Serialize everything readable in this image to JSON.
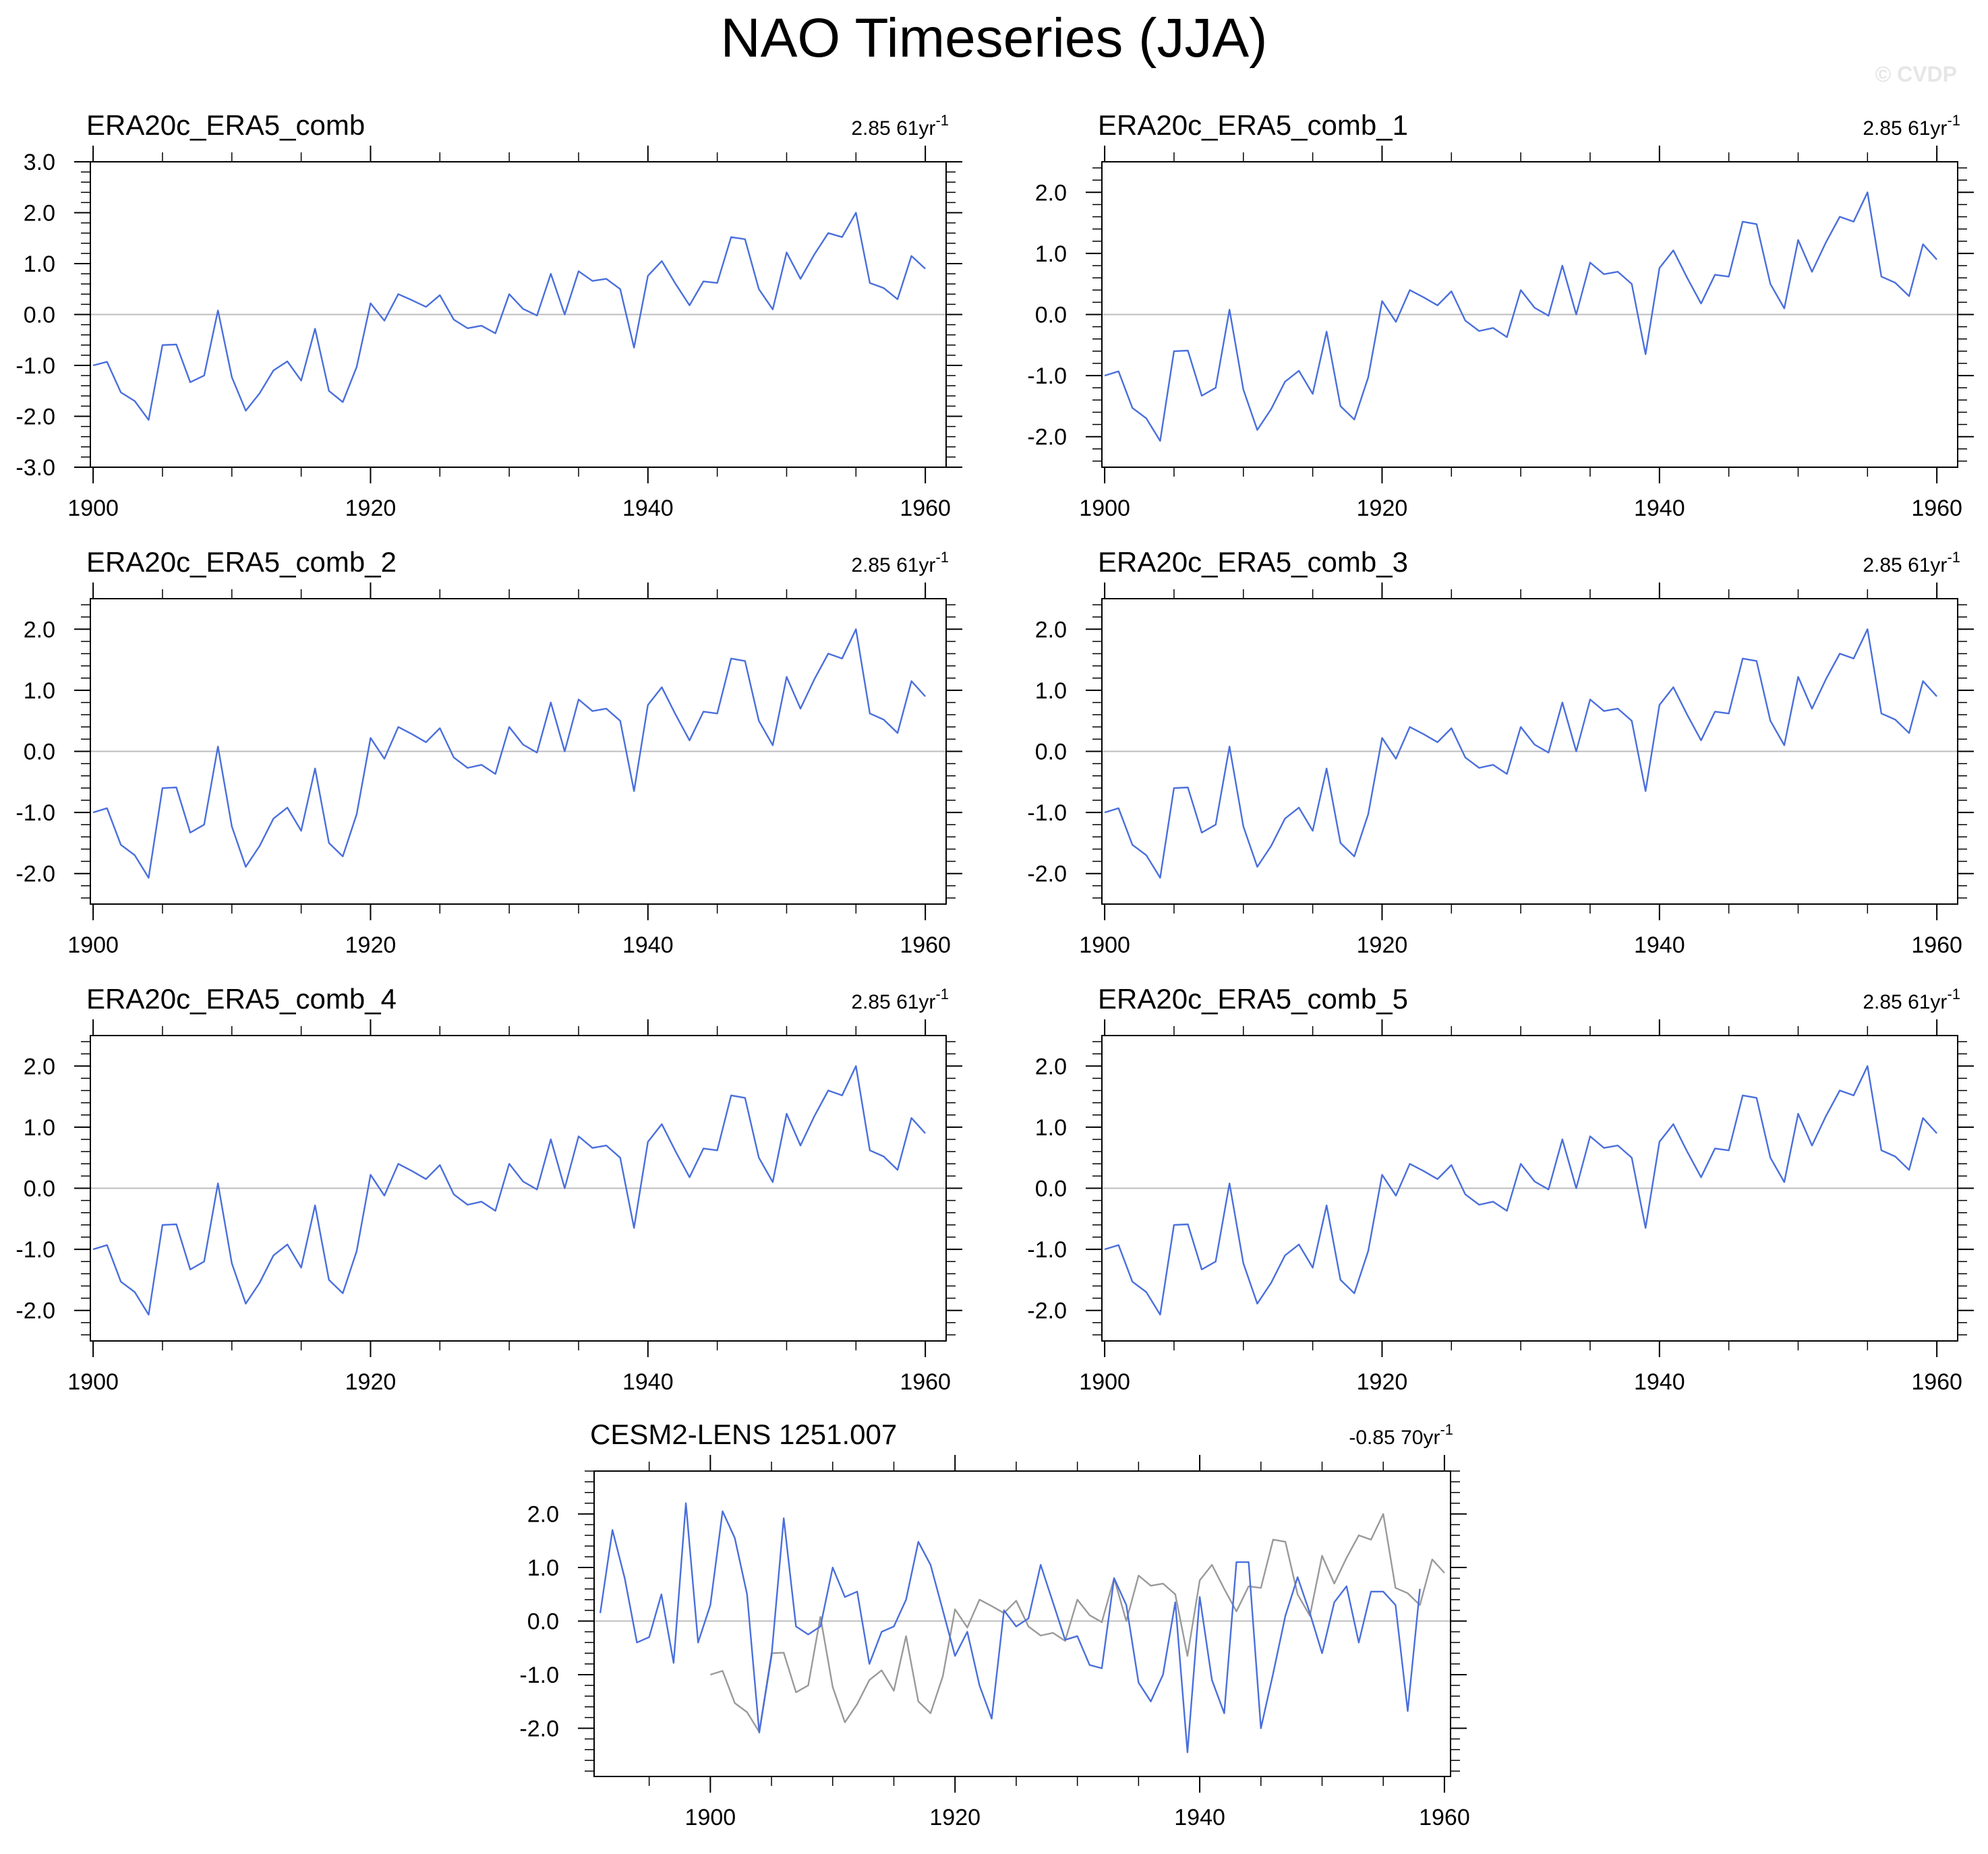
{
  "title": "NAO Timeseries (JJA)",
  "watermark": "© CVDP",
  "colors": {
    "series": "#4a6fdc",
    "observations": "#9a9a9a",
    "zero_line": "#bdbdbd",
    "frame": "#000000"
  },
  "chart_data": [
    {
      "type": "line",
      "title": "ERA20c_ERA5_comb",
      "trend_value": "2.85",
      "trend_length": "61yr",
      "trend_exp": "-1",
      "xlim": [
        1899.8,
        1961.5
      ],
      "ylim": [
        -3,
        3
      ],
      "yticks": [
        -3,
        -2,
        -1,
        0,
        1,
        2,
        3
      ],
      "xticks": [
        1900,
        1920,
        1940,
        1960
      ],
      "ytick_labels": [
        "-3.0",
        "-2.0",
        "-1.0",
        "0.0",
        "1.0",
        "2.0",
        "3.0"
      ],
      "xtick_labels": [
        "1900",
        "1920",
        "1940",
        "1960"
      ],
      "grid": false,
      "x_start": 1900,
      "series": [
        {
          "values": [
            -1.0,
            -0.93,
            -1.53,
            -1.7,
            -2.07,
            -0.6,
            -0.59,
            -1.33,
            -1.2,
            0.08,
            -1.23,
            -1.89,
            -1.55,
            -1.1,
            -0.92,
            -1.3,
            -0.28,
            -1.5,
            -1.72,
            -1.03,
            0.22,
            -0.12,
            0.4,
            0.28,
            0.15,
            0.38,
            -0.1,
            -0.27,
            -0.22,
            -0.37,
            0.4,
            0.11,
            -0.02,
            0.8,
            0.0,
            0.85,
            0.66,
            0.7,
            0.5,
            -0.65,
            0.76,
            1.05,
            0.6,
            0.18,
            0.65,
            0.62,
            1.52,
            1.48,
            0.5,
            0.1,
            1.22,
            0.7,
            1.18,
            1.6,
            1.52,
            2.0,
            0.62,
            0.52,
            0.3,
            1.15,
            0.9
          ]
        }
      ]
    },
    {
      "type": "line",
      "title": "ERA20c_ERA5_comb_1",
      "trend_value": "2.85",
      "trend_length": "61yr",
      "trend_exp": "-1",
      "xlim": [
        1899.8,
        1961.5
      ],
      "ylim": [
        -2.5,
        2.5
      ],
      "yticks": [
        -2,
        -1,
        0,
        1,
        2
      ],
      "xticks": [
        1900,
        1920,
        1940,
        1960
      ],
      "ytick_labels": [
        "-2.0",
        "-1.0",
        "0.0",
        "1.0",
        "2.0"
      ],
      "xtick_labels": [
        "1900",
        "1920",
        "1940",
        "1960"
      ],
      "grid": false,
      "x_start": 1900,
      "series": [
        {
          "values": [
            -1.0,
            -0.93,
            -1.53,
            -1.7,
            -2.07,
            -0.6,
            -0.59,
            -1.33,
            -1.2,
            0.08,
            -1.23,
            -1.89,
            -1.55,
            -1.1,
            -0.92,
            -1.3,
            -0.28,
            -1.5,
            -1.72,
            -1.03,
            0.22,
            -0.12,
            0.4,
            0.28,
            0.15,
            0.38,
            -0.1,
            -0.27,
            -0.22,
            -0.37,
            0.4,
            0.11,
            -0.02,
            0.8,
            0.0,
            0.85,
            0.66,
            0.7,
            0.5,
            -0.65,
            0.76,
            1.05,
            0.6,
            0.18,
            0.65,
            0.62,
            1.52,
            1.48,
            0.5,
            0.1,
            1.22,
            0.7,
            1.18,
            1.6,
            1.52,
            2.0,
            0.62,
            0.52,
            0.3,
            1.15,
            0.9
          ]
        }
      ]
    },
    {
      "type": "line",
      "title": "ERA20c_ERA5_comb_2",
      "trend_value": "2.85",
      "trend_length": "61yr",
      "trend_exp": "-1",
      "xlim": [
        1899.8,
        1961.5
      ],
      "ylim": [
        -2.5,
        2.5
      ],
      "yticks": [
        -2,
        -1,
        0,
        1,
        2
      ],
      "xticks": [
        1900,
        1920,
        1940,
        1960
      ],
      "ytick_labels": [
        "-2.0",
        "-1.0",
        "0.0",
        "1.0",
        "2.0"
      ],
      "xtick_labels": [
        "1900",
        "1920",
        "1940",
        "1960"
      ],
      "grid": false,
      "x_start": 1900,
      "series": [
        {
          "values": [
            -1.0,
            -0.93,
            -1.53,
            -1.7,
            -2.07,
            -0.6,
            -0.59,
            -1.33,
            -1.2,
            0.08,
            -1.23,
            -1.89,
            -1.55,
            -1.1,
            -0.92,
            -1.3,
            -0.28,
            -1.5,
            -1.72,
            -1.03,
            0.22,
            -0.12,
            0.4,
            0.28,
            0.15,
            0.38,
            -0.1,
            -0.27,
            -0.22,
            -0.37,
            0.4,
            0.11,
            -0.02,
            0.8,
            0.0,
            0.85,
            0.66,
            0.7,
            0.5,
            -0.65,
            0.76,
            1.05,
            0.6,
            0.18,
            0.65,
            0.62,
            1.52,
            1.48,
            0.5,
            0.1,
            1.22,
            0.7,
            1.18,
            1.6,
            1.52,
            2.0,
            0.62,
            0.52,
            0.3,
            1.15,
            0.9
          ]
        }
      ]
    },
    {
      "type": "line",
      "title": "ERA20c_ERA5_comb_3",
      "trend_value": "2.85",
      "trend_length": "61yr",
      "trend_exp": "-1",
      "xlim": [
        1899.8,
        1961.5
      ],
      "ylim": [
        -2.5,
        2.5
      ],
      "yticks": [
        -2,
        -1,
        0,
        1,
        2
      ],
      "xticks": [
        1900,
        1920,
        1940,
        1960
      ],
      "ytick_labels": [
        "-2.0",
        "-1.0",
        "0.0",
        "1.0",
        "2.0"
      ],
      "xtick_labels": [
        "1900",
        "1920",
        "1940",
        "1960"
      ],
      "grid": false,
      "x_start": 1900,
      "series": [
        {
          "values": [
            -1.0,
            -0.93,
            -1.53,
            -1.7,
            -2.07,
            -0.6,
            -0.59,
            -1.33,
            -1.2,
            0.08,
            -1.23,
            -1.89,
            -1.55,
            -1.1,
            -0.92,
            -1.3,
            -0.28,
            -1.5,
            -1.72,
            -1.03,
            0.22,
            -0.12,
            0.4,
            0.28,
            0.15,
            0.38,
            -0.1,
            -0.27,
            -0.22,
            -0.37,
            0.4,
            0.11,
            -0.02,
            0.8,
            0.0,
            0.85,
            0.66,
            0.7,
            0.5,
            -0.65,
            0.76,
            1.05,
            0.6,
            0.18,
            0.65,
            0.62,
            1.52,
            1.48,
            0.5,
            0.1,
            1.22,
            0.7,
            1.18,
            1.6,
            1.52,
            2.0,
            0.62,
            0.52,
            0.3,
            1.15,
            0.9
          ]
        }
      ]
    },
    {
      "type": "line",
      "title": "ERA20c_ERA5_comb_4",
      "trend_value": "2.85",
      "trend_length": "61yr",
      "trend_exp": "-1",
      "xlim": [
        1899.8,
        1961.5
      ],
      "ylim": [
        -2.5,
        2.5
      ],
      "yticks": [
        -2,
        -1,
        0,
        1,
        2
      ],
      "xticks": [
        1900,
        1920,
        1940,
        1960
      ],
      "ytick_labels": [
        "-2.0",
        "-1.0",
        "0.0",
        "1.0",
        "2.0"
      ],
      "xtick_labels": [
        "1900",
        "1920",
        "1940",
        "1960"
      ],
      "grid": false,
      "x_start": 1900,
      "series": [
        {
          "values": [
            -1.0,
            -0.93,
            -1.53,
            -1.7,
            -2.07,
            -0.6,
            -0.59,
            -1.33,
            -1.2,
            0.08,
            -1.23,
            -1.89,
            -1.55,
            -1.1,
            -0.92,
            -1.3,
            -0.28,
            -1.5,
            -1.72,
            -1.03,
            0.22,
            -0.12,
            0.4,
            0.28,
            0.15,
            0.38,
            -0.1,
            -0.27,
            -0.22,
            -0.37,
            0.4,
            0.11,
            -0.02,
            0.8,
            0.0,
            0.85,
            0.66,
            0.7,
            0.5,
            -0.65,
            0.76,
            1.05,
            0.6,
            0.18,
            0.65,
            0.62,
            1.52,
            1.48,
            0.5,
            0.1,
            1.22,
            0.7,
            1.18,
            1.6,
            1.52,
            2.0,
            0.62,
            0.52,
            0.3,
            1.15,
            0.9
          ]
        }
      ]
    },
    {
      "type": "line",
      "title": "ERA20c_ERA5_comb_5",
      "trend_value": "2.85",
      "trend_length": "61yr",
      "trend_exp": "-1",
      "xlim": [
        1899.8,
        1961.5
      ],
      "ylim": [
        -2.5,
        2.5
      ],
      "yticks": [
        -2,
        -1,
        0,
        1,
        2
      ],
      "xticks": [
        1900,
        1920,
        1940,
        1960
      ],
      "ytick_labels": [
        "-2.0",
        "-1.0",
        "0.0",
        "1.0",
        "2.0"
      ],
      "xtick_labels": [
        "1900",
        "1920",
        "1940",
        "1960"
      ],
      "grid": false,
      "x_start": 1900,
      "series": [
        {
          "values": [
            -1.0,
            -0.93,
            -1.53,
            -1.7,
            -2.07,
            -0.6,
            -0.59,
            -1.33,
            -1.2,
            0.08,
            -1.23,
            -1.89,
            -1.55,
            -1.1,
            -0.92,
            -1.3,
            -0.28,
            -1.5,
            -1.72,
            -1.03,
            0.22,
            -0.12,
            0.4,
            0.28,
            0.15,
            0.38,
            -0.1,
            -0.27,
            -0.22,
            -0.37,
            0.4,
            0.11,
            -0.02,
            0.8,
            0.0,
            0.85,
            0.66,
            0.7,
            0.5,
            -0.65,
            0.76,
            1.05,
            0.6,
            0.18,
            0.65,
            0.62,
            1.52,
            1.48,
            0.5,
            0.1,
            1.22,
            0.7,
            1.18,
            1.6,
            1.52,
            2.0,
            0.62,
            0.52,
            0.3,
            1.15,
            0.9
          ]
        }
      ]
    },
    {
      "type": "line",
      "title": "CESM2-LENS 1251.007",
      "trend_value": "-0.85",
      "trend_length": "70yr",
      "trend_exp": "-1",
      "xlim": [
        1890.5,
        1960.5
      ],
      "ylim": [
        -2.9,
        2.8
      ],
      "yticks": [
        -2,
        -1,
        0,
        1,
        2
      ],
      "xticks": [
        1900,
        1920,
        1940,
        1960
      ],
      "ytick_labels": [
        "-2.0",
        "-1.0",
        "0.0",
        "1.0",
        "2.0"
      ],
      "xtick_labels": [
        "1900",
        "1920",
        "1940",
        "1960"
      ],
      "grid": false,
      "series": [
        {
          "x_start": 1891,
          "values": [
            0.15,
            1.7,
            0.8,
            -0.4,
            -0.3,
            0.5,
            -0.78,
            2.2,
            -0.4,
            0.3,
            2.05,
            1.55,
            0.5,
            -2.08,
            -0.65,
            1.92,
            -0.1,
            -0.25,
            -0.1,
            1.0,
            0.45,
            0.55,
            -0.8,
            -0.2,
            -0.1,
            0.4,
            1.48,
            1.05,
            0.2,
            -0.65,
            -0.2,
            -1.2,
            -1.82,
            0.2,
            -0.1,
            0.05,
            1.05,
            0.35,
            -0.35,
            -0.28,
            -0.82,
            -0.88,
            0.8,
            0.3,
            -1.15,
            -1.5,
            -1.0,
            0.35,
            -2.45,
            0.45,
            -1.1,
            -1.72,
            1.1,
            1.1,
            -2.0,
            -0.98,
            0.1,
            0.82,
            0.15,
            -0.6,
            0.35,
            0.65,
            -0.4,
            0.55,
            0.55,
            0.3,
            -1.68,
            0.6
          ]
        },
        {
          "x_start": 1900,
          "values": [
            -1.0,
            -0.93,
            -1.53,
            -1.7,
            -2.07,
            -0.6,
            -0.59,
            -1.33,
            -1.2,
            0.08,
            -1.23,
            -1.89,
            -1.55,
            -1.1,
            -0.92,
            -1.3,
            -0.28,
            -1.5,
            -1.72,
            -1.03,
            0.22,
            -0.12,
            0.4,
            0.28,
            0.15,
            0.38,
            -0.1,
            -0.27,
            -0.22,
            -0.37,
            0.4,
            0.11,
            -0.02,
            0.8,
            0.0,
            0.85,
            0.66,
            0.7,
            0.5,
            -0.65,
            0.76,
            1.05,
            0.6,
            0.18,
            0.65,
            0.62,
            1.52,
            1.48,
            0.5,
            0.1,
            1.22,
            0.7,
            1.18,
            1.6,
            1.52,
            2.0,
            0.62,
            0.52,
            0.3,
            1.15,
            0.9
          ]
        }
      ]
    }
  ]
}
